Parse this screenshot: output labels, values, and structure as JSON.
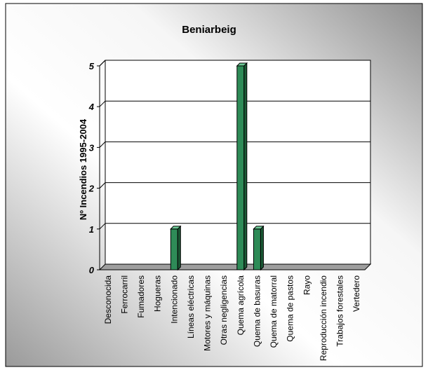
{
  "chart_data": {
    "type": "bar",
    "title": "Beniarbeig",
    "xlabel": "",
    "ylabel": "Nº Incendios 1995-2004",
    "ylim": [
      0,
      5
    ],
    "yticks": [
      "0",
      "1",
      "2",
      "3",
      "4",
      "5"
    ],
    "grid": true,
    "legend": "none",
    "three_d": true,
    "categories": [
      "Desconocida",
      "Ferrocarril",
      "Fumadores",
      "Hogueras",
      "Intencionado",
      "Líneas eléctricas",
      "Motores y máquinas",
      "Otras negligencias",
      "Quema agrícola",
      "Quema de basuras",
      "Quema de matorral",
      "Quema de pastos",
      "Rayo",
      "Reproducción incendio",
      "Trabajos forestales",
      "Vertedero"
    ],
    "values": [
      0,
      0,
      0,
      0,
      1,
      0,
      0,
      0,
      5,
      1,
      0,
      0,
      0,
      0,
      0,
      0
    ],
    "colors": {
      "bar": "#2e8b57",
      "bar_top": "#6cc895",
      "bar_side": "#1b5a36",
      "background_dark": "#a9a9a9",
      "background_light": "#ffffff"
    }
  }
}
